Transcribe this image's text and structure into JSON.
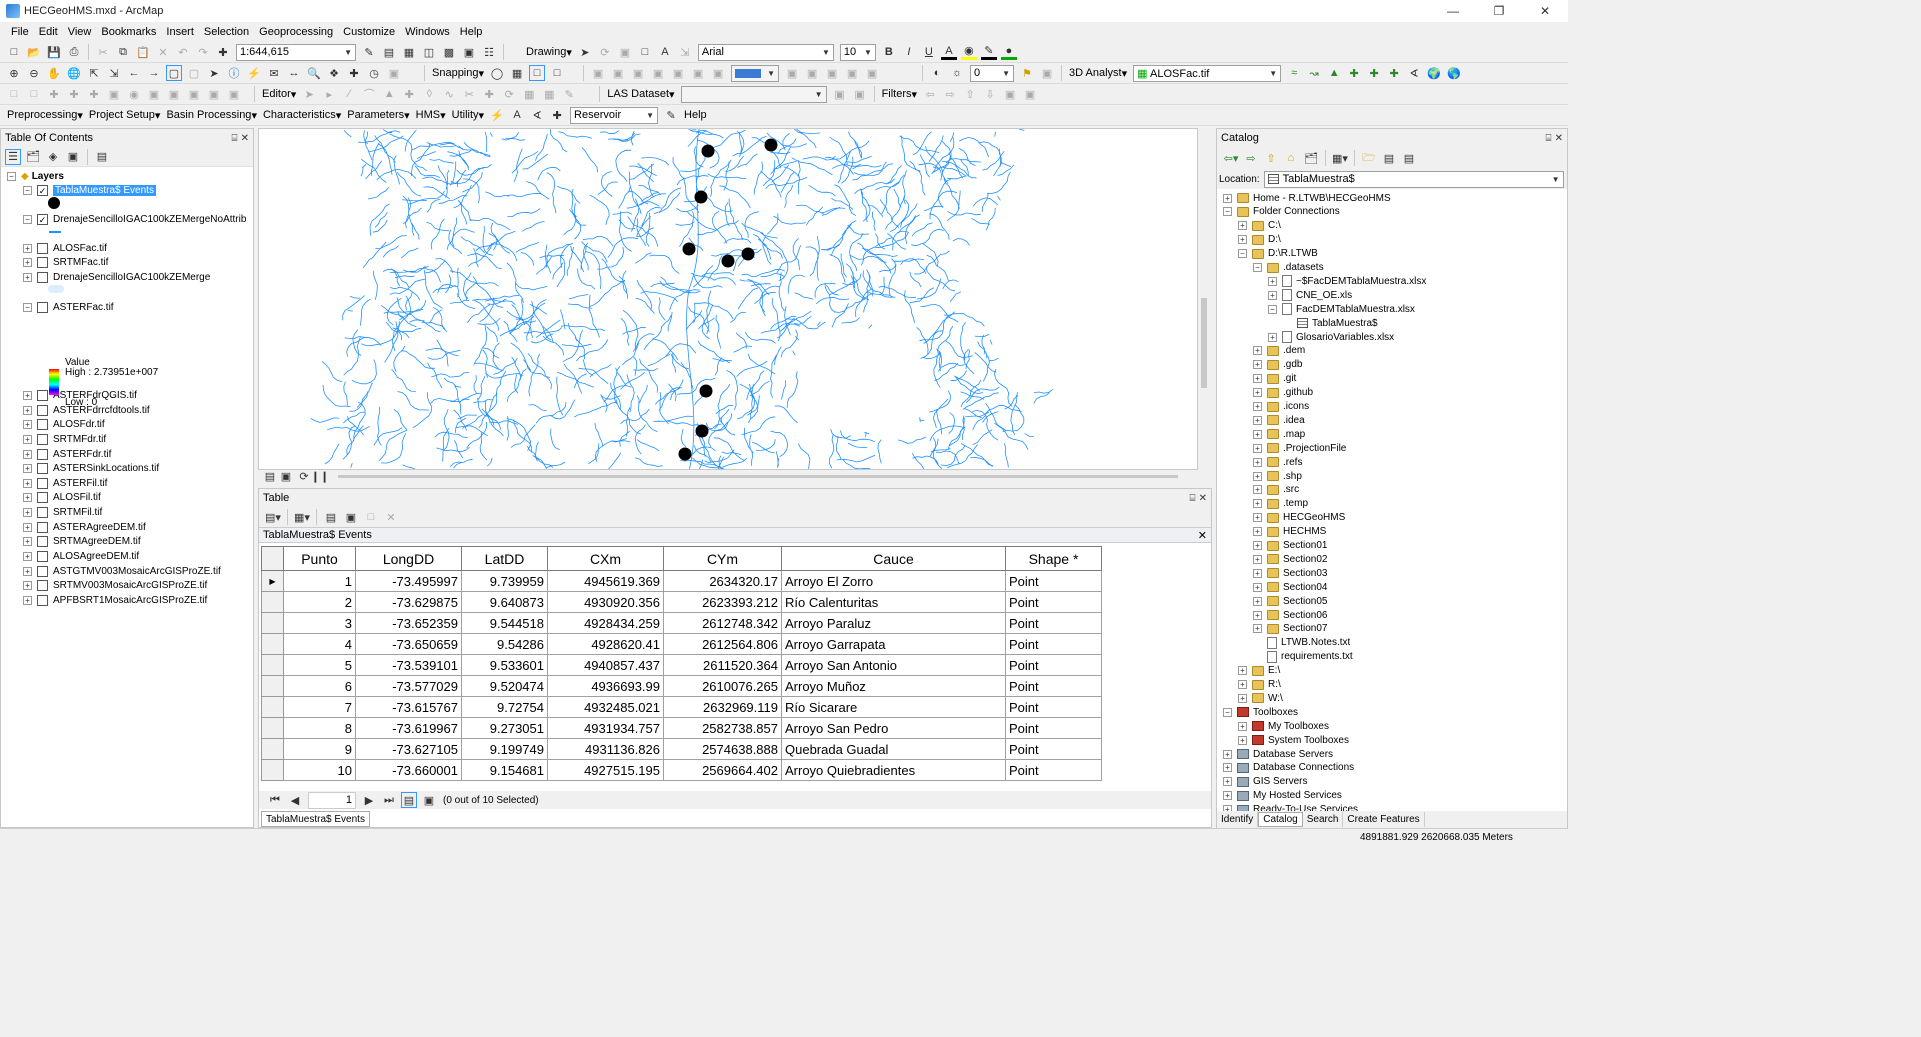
{
  "window": {
    "title": "HECGeoHMS.mxd - ArcMap"
  },
  "menu": [
    "File",
    "Edit",
    "View",
    "Bookmarks",
    "Insert",
    "Selection",
    "Geoprocessing",
    "Customize",
    "Windows",
    "Help"
  ],
  "toolbar1": {
    "scale": "1:644,615",
    "drawing": "Drawing",
    "font": "Arial",
    "font_size": "10",
    "bold": "B",
    "italic": "I",
    "underline": "U",
    "text_tool": "A"
  },
  "toolbar2": {
    "snapping": "Snapping",
    "analyst": "3D Analyst",
    "layer": "ALOSFac.tif",
    "layer_value": "0"
  },
  "toolbar3": {
    "editor": "Editor",
    "las": "LAS Dataset",
    "filters": "Filters"
  },
  "toolbar4": {
    "items": [
      "Preprocessing",
      "Project Setup",
      "Basin Processing",
      "Characteristics",
      "Parameters",
      "HMS",
      "Utility"
    ],
    "reservoir": "Reservoir",
    "help": "Help"
  },
  "toc": {
    "title": "Table Of Contents",
    "root": "Layers",
    "layers": [
      {
        "name": "TablaMuestra$ Events",
        "checked": true
      },
      {
        "name": "DrenajeSencilloIGAC100kZEMergeNoAttrib",
        "checked": true
      },
      {
        "name": "ALOSFac.tif",
        "checked": false
      },
      {
        "name": "SRTMFac.tif",
        "checked": false
      },
      {
        "name": "DrenajeSencilloIGAC100kZEMerge",
        "checked": false
      },
      {
        "name": "ASTERFac.tif",
        "checked": false
      },
      {
        "name": "ASTERFdrQGIS.tif",
        "checked": false
      },
      {
        "name": "ASTERFdrrcfdtools.tif",
        "checked": false
      },
      {
        "name": "ALOSFdr.tif",
        "checked": false
      },
      {
        "name": "SRTMFdr.tif",
        "checked": false
      },
      {
        "name": "ASTERFdr.tif",
        "checked": false
      },
      {
        "name": "ASTERSinkLocations.tif",
        "checked": false
      },
      {
        "name": "ASTERFil.tif",
        "checked": false
      },
      {
        "name": "ALOSFil.tif",
        "checked": false
      },
      {
        "name": "SRTMFil.tif",
        "checked": false
      },
      {
        "name": "ASTERAgreeDEM.tif",
        "checked": false
      },
      {
        "name": "SRTMAgreeDEM.tif",
        "checked": false
      },
      {
        "name": "ALOSAgreeDEM.tif",
        "checked": false
      },
      {
        "name": "ASTGTMV003MosaicArcGISProZE.tif",
        "checked": false
      },
      {
        "name": "SRTMV003MosaicArcGISProZE.tif",
        "checked": false
      },
      {
        "name": "APFBSRT1MosaicArcGISProZE.tif",
        "checked": false
      }
    ],
    "legend_value": "Value",
    "legend_high": "High : 2.73951e+007",
    "legend_low": "Low : 0"
  },
  "table": {
    "panel_title": "Table",
    "tab_title": "TablaMuestra$ Events",
    "columns": [
      "Punto",
      "LongDD",
      "LatDD",
      "CXm",
      "CYm",
      "Cauce",
      "Shape *"
    ],
    "rows": [
      [
        "1",
        "-73.495997",
        "9.739959",
        "4945619.369",
        "2634320.17",
        "Arroyo El Zorro",
        "Point"
      ],
      [
        "2",
        "-73.629875",
        "9.640873",
        "4930920.356",
        "2623393.212",
        "Río Calenturitas",
        "Point"
      ],
      [
        "3",
        "-73.652359",
        "9.544518",
        "4928434.259",
        "2612748.342",
        "Arroyo Paraluz",
        "Point"
      ],
      [
        "4",
        "-73.650659",
        "9.54286",
        "4928620.41",
        "2612564.806",
        "Arroyo Garrapata",
        "Point"
      ],
      [
        "5",
        "-73.539101",
        "9.533601",
        "4940857.437",
        "2611520.364",
        "Arroyo San Antonio",
        "Point"
      ],
      [
        "6",
        "-73.577029",
        "9.520474",
        "4936693.99",
        "2610076.265",
        "Arroyo Muñoz",
        "Point"
      ],
      [
        "7",
        "-73.615767",
        "9.72754",
        "4932485.021",
        "2632969.119",
        "Río Sicarare",
        "Point"
      ],
      [
        "8",
        "-73.619967",
        "9.273051",
        "4931934.757",
        "2582738.857",
        "Arroyo San Pedro",
        "Point"
      ],
      [
        "9",
        "-73.627105",
        "9.199749",
        "4931136.826",
        "2574638.888",
        "Quebrada Guadal",
        "Point"
      ],
      [
        "10",
        "-73.660001",
        "9.154681",
        "4927515.195",
        "2569664.402",
        "Arroyo Quiebradientes",
        "Point"
      ]
    ],
    "record": "1",
    "selection_status": "(0 out of 10 Selected)",
    "bottom_tab": "TablaMuestra$ Events"
  },
  "catalog": {
    "title": "Catalog",
    "location_label": "Location:",
    "location_value": "TablaMuestra$",
    "nodes": [
      {
        "label": "Home - R.LTWB\\HECGeoHMS",
        "depth": 0,
        "exp": "+",
        "icon": "fold"
      },
      {
        "label": "Folder Connections",
        "depth": 0,
        "exp": "-",
        "icon": "fold"
      },
      {
        "label": "C:\\",
        "depth": 1,
        "exp": "+",
        "icon": "fold"
      },
      {
        "label": "D:\\",
        "depth": 1,
        "exp": "+",
        "icon": "fold"
      },
      {
        "label": "D:\\R.LTWB",
        "depth": 1,
        "exp": "-",
        "icon": "fold"
      },
      {
        "label": ".datasets",
        "depth": 2,
        "exp": "-",
        "icon": "fold"
      },
      {
        "label": "~$FacDEMTablaMuestra.xlsx",
        "depth": 3,
        "exp": "+",
        "icon": "file"
      },
      {
        "label": "CNE_OE.xls",
        "depth": 3,
        "exp": "+",
        "icon": "file"
      },
      {
        "label": "FacDEMTablaMuestra.xlsx",
        "depth": 3,
        "exp": "-",
        "icon": "file"
      },
      {
        "label": "TablaMuestra$",
        "depth": 4,
        "exp": "",
        "icon": "tbl"
      },
      {
        "label": "GlosarioVariables.xlsx",
        "depth": 3,
        "exp": "+",
        "icon": "file"
      },
      {
        "label": ".dem",
        "depth": 2,
        "exp": "+",
        "icon": "fold"
      },
      {
        "label": ".gdb",
        "depth": 2,
        "exp": "+",
        "icon": "fold"
      },
      {
        "label": ".git",
        "depth": 2,
        "exp": "+",
        "icon": "fold"
      },
      {
        "label": ".github",
        "depth": 2,
        "exp": "+",
        "icon": "fold"
      },
      {
        "label": ".icons",
        "depth": 2,
        "exp": "+",
        "icon": "fold"
      },
      {
        "label": ".idea",
        "depth": 2,
        "exp": "+",
        "icon": "fold"
      },
      {
        "label": ".map",
        "depth": 2,
        "exp": "+",
        "icon": "fold"
      },
      {
        "label": ".ProjectionFile",
        "depth": 2,
        "exp": "+",
        "icon": "fold"
      },
      {
        "label": ".refs",
        "depth": 2,
        "exp": "+",
        "icon": "fold"
      },
      {
        "label": ".shp",
        "depth": 2,
        "exp": "+",
        "icon": "fold"
      },
      {
        "label": ".src",
        "depth": 2,
        "exp": "+",
        "icon": "fold"
      },
      {
        "label": ".temp",
        "depth": 2,
        "exp": "+",
        "icon": "fold"
      },
      {
        "label": "HECGeoHMS",
        "depth": 2,
        "exp": "+",
        "icon": "fold"
      },
      {
        "label": "HECHMS",
        "depth": 2,
        "exp": "+",
        "icon": "fold"
      },
      {
        "label": "Section01",
        "depth": 2,
        "exp": "+",
        "icon": "fold"
      },
      {
        "label": "Section02",
        "depth": 2,
        "exp": "+",
        "icon": "fold"
      },
      {
        "label": "Section03",
        "depth": 2,
        "exp": "+",
        "icon": "fold"
      },
      {
        "label": "Section04",
        "depth": 2,
        "exp": "+",
        "icon": "fold"
      },
      {
        "label": "Section05",
        "depth": 2,
        "exp": "+",
        "icon": "fold"
      },
      {
        "label": "Section06",
        "depth": 2,
        "exp": "+",
        "icon": "fold"
      },
      {
        "label": "Section07",
        "depth": 2,
        "exp": "+",
        "icon": "fold"
      },
      {
        "label": "LTWB.Notes.txt",
        "depth": 2,
        "exp": "",
        "icon": "file"
      },
      {
        "label": "requirements.txt",
        "depth": 2,
        "exp": "",
        "icon": "file"
      },
      {
        "label": "E:\\",
        "depth": 1,
        "exp": "+",
        "icon": "fold"
      },
      {
        "label": "R:\\",
        "depth": 1,
        "exp": "+",
        "icon": "fold"
      },
      {
        "label": "W:\\",
        "depth": 1,
        "exp": "+",
        "icon": "fold"
      },
      {
        "label": "Toolboxes",
        "depth": 0,
        "exp": "-",
        "icon": "tbox"
      },
      {
        "label": "My Toolboxes",
        "depth": 1,
        "exp": "+",
        "icon": "tbox"
      },
      {
        "label": "System Toolboxes",
        "depth": 1,
        "exp": "+",
        "icon": "tbox"
      },
      {
        "label": "Database Servers",
        "depth": 0,
        "exp": "+",
        "icon": "gen"
      },
      {
        "label": "Database Connections",
        "depth": 0,
        "exp": "+",
        "icon": "gen"
      },
      {
        "label": "GIS Servers",
        "depth": 0,
        "exp": "+",
        "icon": "gen"
      },
      {
        "label": "My Hosted Services",
        "depth": 0,
        "exp": "+",
        "icon": "gen"
      },
      {
        "label": "Ready-To-Use Services",
        "depth": 0,
        "exp": "+",
        "icon": "gen"
      }
    ],
    "tabs": [
      "Identify",
      "Catalog",
      "Search",
      "Create Features"
    ]
  },
  "status": {
    "coords": "4891881.929  2620668.035 Meters"
  },
  "colors": {
    "accent": "#3399ff",
    "river": "#1e90ff",
    "point": "#000000"
  }
}
